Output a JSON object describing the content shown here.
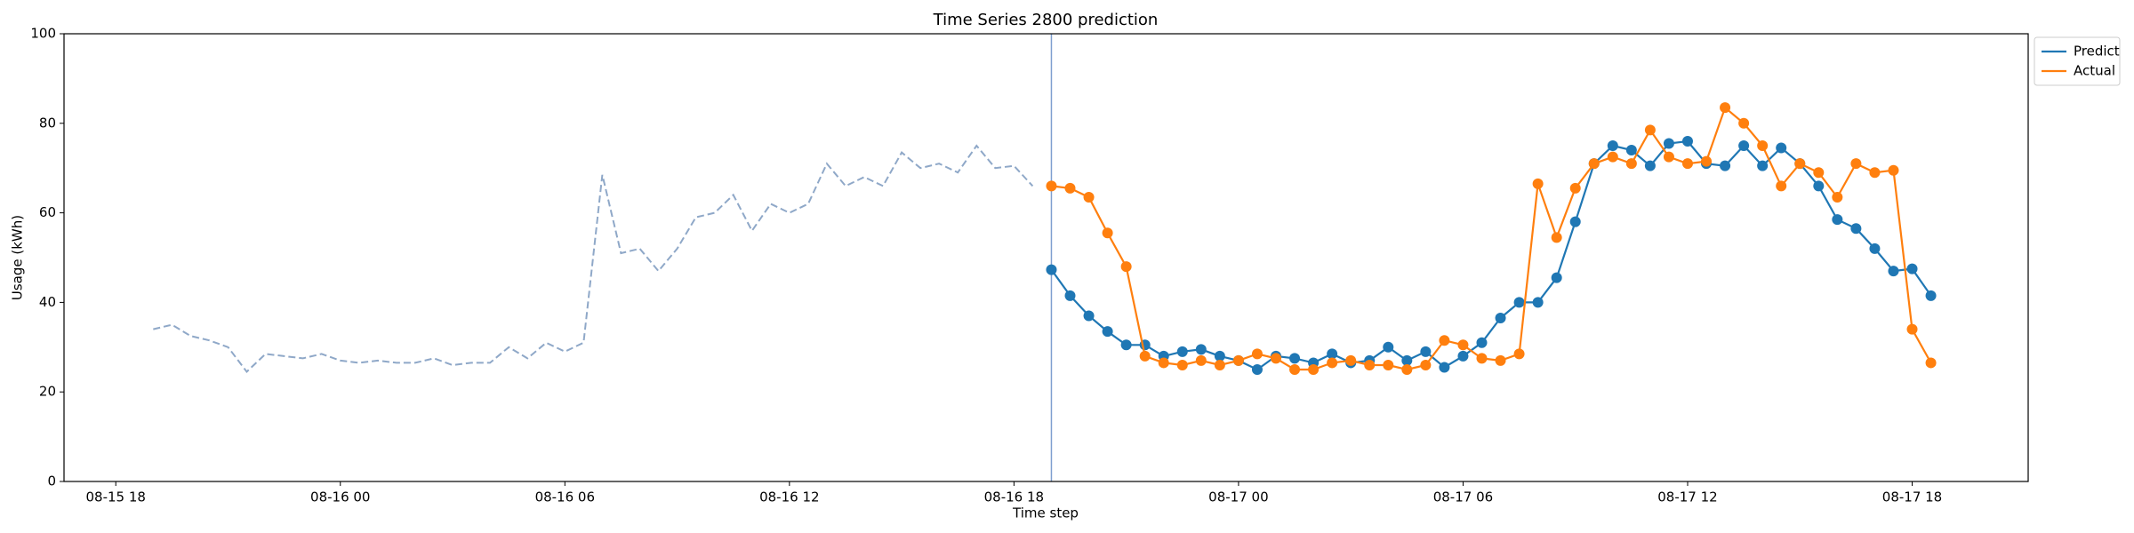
{
  "chart_data": {
    "type": "line",
    "title": "Time Series 2800 prediction",
    "xlabel": "Time step",
    "ylabel": "Usage (kWh)",
    "xlim": [
      "08-15 16:37",
      "08-17 21:06"
    ],
    "xticks": [
      "08-15 18",
      "08-16 00",
      "08-16 06",
      "08-16 12",
      "08-16 18",
      "08-17 00",
      "08-17 06",
      "08-17 12",
      "08-17 18"
    ],
    "ylim": [
      0,
      100
    ],
    "yticks": [
      0,
      20,
      40,
      60,
      80,
      100
    ],
    "grid": false,
    "legend": "upper right outside",
    "vline": {
      "x": "08-16 19:00",
      "color": "#7f9fcf"
    },
    "series": [
      {
        "color": "#8fa8c8",
        "dashed": true,
        "markers": false,
        "x": [
          "08-15 19:00",
          "08-15 19:30",
          "08-15 20:00",
          "08-15 20:30",
          "08-15 21:00",
          "08-15 21:30",
          "08-15 22:00",
          "08-15 22:30",
          "08-15 23:00",
          "08-15 23:30",
          "08-16 00:00",
          "08-16 00:30",
          "08-16 01:00",
          "08-16 01:30",
          "08-16 02:00",
          "08-16 02:30",
          "08-16 03:00",
          "08-16 03:30",
          "08-16 04:00",
          "08-16 04:30",
          "08-16 05:00",
          "08-16 05:30",
          "08-16 06:00",
          "08-16 06:30",
          "08-16 07:00",
          "08-16 07:30",
          "08-16 08:00",
          "08-16 08:30",
          "08-16 09:00",
          "08-16 09:30",
          "08-16 10:00",
          "08-16 10:30",
          "08-16 11:00",
          "08-16 11:30",
          "08-16 12:00",
          "08-16 12:30",
          "08-16 13:00",
          "08-16 13:30",
          "08-16 14:00",
          "08-16 14:30",
          "08-16 15:00",
          "08-16 15:30",
          "08-16 16:00",
          "08-16 16:30",
          "08-16 17:00",
          "08-16 17:30",
          "08-16 18:00",
          "08-16 18:30"
        ],
        "values": [
          34,
          35,
          32.5,
          31.5,
          30,
          24.5,
          28.5,
          28,
          27.5,
          28.5,
          27,
          26.5,
          27,
          26.5,
          26.5,
          27.5,
          26,
          26.5,
          26.5,
          30,
          27.5,
          31,
          29,
          31,
          68.5,
          51,
          52,
          47,
          52,
          59,
          60,
          64,
          56,
          62,
          60,
          62,
          71,
          66,
          68,
          66,
          73.5,
          70,
          71,
          69,
          75,
          70,
          70.5,
          66
        ]
      },
      {
        "name": "Predict",
        "color": "#1f77b4",
        "dashed": false,
        "markers": true,
        "x": [
          "08-16 19:00",
          "08-16 19:30",
          "08-16 20:00",
          "08-16 20:30",
          "08-16 21:00",
          "08-16 21:30",
          "08-16 22:00",
          "08-16 22:30",
          "08-16 23:00",
          "08-16 23:30",
          "08-17 00:00",
          "08-17 00:30",
          "08-17 01:00",
          "08-17 01:30",
          "08-17 02:00",
          "08-17 02:30",
          "08-17 03:00",
          "08-17 03:30",
          "08-17 04:00",
          "08-17 04:30",
          "08-17 05:00",
          "08-17 05:30",
          "08-17 06:00",
          "08-17 06:30",
          "08-17 07:00",
          "08-17 07:30",
          "08-17 08:00",
          "08-17 08:30",
          "08-17 09:00",
          "08-17 09:30",
          "08-17 10:00",
          "08-17 10:30",
          "08-17 11:00",
          "08-17 11:30",
          "08-17 12:00",
          "08-17 12:30",
          "08-17 13:00",
          "08-17 13:30",
          "08-17 14:00",
          "08-17 14:30",
          "08-17 15:00",
          "08-17 15:30",
          "08-17 16:00",
          "08-17 16:30",
          "08-17 17:00",
          "08-17 17:30",
          "08-17 18:00",
          "08-17 18:30"
        ],
        "values": [
          47.3,
          41.5,
          37,
          33.5,
          30.5,
          30.5,
          28,
          29,
          29.5,
          28,
          27,
          25,
          28,
          27.5,
          26.5,
          28.5,
          26.5,
          27,
          30,
          27,
          29,
          25.5,
          28,
          31,
          36.5,
          40,
          40,
          45.5,
          58,
          71,
          75,
          74,
          70.5,
          75.5,
          76,
          71,
          70.5,
          75,
          70.5,
          74.5,
          71,
          66,
          58.5,
          56.5,
          52,
          47,
          47.5,
          41.5
        ]
      },
      {
        "name": "Actual",
        "color": "#ff7f0e",
        "dashed": false,
        "markers": true,
        "x": [
          "08-16 19:00",
          "08-16 19:30",
          "08-16 20:00",
          "08-16 20:30",
          "08-16 21:00",
          "08-16 21:30",
          "08-16 22:00",
          "08-16 22:30",
          "08-16 23:00",
          "08-16 23:30",
          "08-17 00:00",
          "08-17 00:30",
          "08-17 01:00",
          "08-17 01:30",
          "08-17 02:00",
          "08-17 02:30",
          "08-17 03:00",
          "08-17 03:30",
          "08-17 04:00",
          "08-17 04:30",
          "08-17 05:00",
          "08-17 05:30",
          "08-17 06:00",
          "08-17 06:30",
          "08-17 07:00",
          "08-17 07:30",
          "08-17 08:00",
          "08-17 08:30",
          "08-17 09:00",
          "08-17 09:30",
          "08-17 10:00",
          "08-17 10:30",
          "08-17 11:00",
          "08-17 11:30",
          "08-17 12:00",
          "08-17 12:30",
          "08-17 13:00",
          "08-17 13:30",
          "08-17 14:00",
          "08-17 14:30",
          "08-17 15:00",
          "08-17 15:30",
          "08-17 16:00",
          "08-17 16:30",
          "08-17 17:00",
          "08-17 17:30",
          "08-17 18:00",
          "08-17 18:30"
        ],
        "values": [
          66,
          65.5,
          63.5,
          55.5,
          48,
          28,
          26.5,
          26,
          27,
          26,
          27,
          28.5,
          27.5,
          25,
          25,
          26.5,
          27,
          26,
          26,
          25,
          26,
          31.5,
          30.5,
          27.5,
          27,
          28.5,
          66.5,
          54.5,
          65.5,
          71,
          72.5,
          71,
          78.5,
          72.5,
          71,
          71.5,
          83.5,
          80,
          75,
          66,
          71,
          69,
          63.5,
          71,
          69,
          69.5,
          34,
          26.5
        ]
      }
    ]
  }
}
